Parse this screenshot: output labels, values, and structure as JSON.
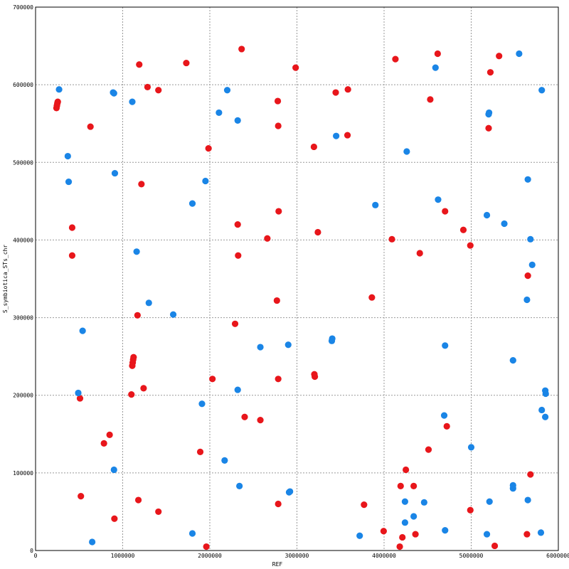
{
  "chart_data": {
    "type": "scatter",
    "title": "",
    "xlabel": "REF",
    "ylabel": "S_symbiotica_STs_chr",
    "xlim": [
      0,
      6000000
    ],
    "ylim": [
      0,
      700000
    ],
    "x_ticks": [
      0,
      1000000,
      2000000,
      3000000,
      4000000,
      5000000,
      6000000
    ],
    "x_tick_labels": [
      "0",
      "1000000",
      "2000000",
      "3000000",
      "4000000",
      "5000000",
      "6000000"
    ],
    "y_ticks": [
      0,
      100000,
      200000,
      300000,
      400000,
      500000,
      600000,
      700000
    ],
    "y_tick_labels": [
      "0",
      "100000",
      "200000",
      "300000",
      "400000",
      "500000",
      "600000",
      "700000"
    ],
    "grid": true,
    "legend": "none",
    "series": [
      {
        "color": "#e8161b",
        "points": [
          [
            240000,
            570000
          ],
          [
            245000,
            573000
          ],
          [
            250000,
            576000
          ],
          [
            255000,
            578000
          ],
          [
            630000,
            546000
          ],
          [
            420000,
            416000
          ],
          [
            420000,
            380000
          ],
          [
            510000,
            196000
          ],
          [
            520000,
            70000
          ],
          [
            785000,
            138000
          ],
          [
            850000,
            149000
          ],
          [
            905000,
            41000
          ],
          [
            1100000,
            201000
          ],
          [
            1110000,
            238000
          ],
          [
            1115000,
            242000
          ],
          [
            1120000,
            246000
          ],
          [
            1125000,
            249000
          ],
          [
            1170000,
            303000
          ],
          [
            1180000,
            65000
          ],
          [
            1190000,
            626000
          ],
          [
            1215000,
            472000
          ],
          [
            1240000,
            209000
          ],
          [
            1285000,
            597000
          ],
          [
            1410000,
            593000
          ],
          [
            1410000,
            50000
          ],
          [
            1730000,
            628000
          ],
          [
            1890000,
            127000
          ],
          [
            1960000,
            5000
          ],
          [
            1985000,
            518000
          ],
          [
            2030000,
            221000
          ],
          [
            2290000,
            292000
          ],
          [
            2320000,
            420000
          ],
          [
            2325000,
            380000
          ],
          [
            2365000,
            646000
          ],
          [
            2400000,
            172000
          ],
          [
            2580000,
            168000
          ],
          [
            2660000,
            402000
          ],
          [
            2770000,
            322000
          ],
          [
            2780000,
            579000
          ],
          [
            2785000,
            547000
          ],
          [
            2785000,
            221000
          ],
          [
            2790000,
            437000
          ],
          [
            2785000,
            60000
          ],
          [
            2985000,
            622000
          ],
          [
            3195000,
            520000
          ],
          [
            3200000,
            227000
          ],
          [
            3205000,
            224000
          ],
          [
            3240000,
            410000
          ],
          [
            3445000,
            590000
          ],
          [
            3585000,
            594000
          ],
          [
            3580000,
            535000
          ],
          [
            3860000,
            326000
          ],
          [
            3770000,
            59000
          ],
          [
            3995000,
            25000
          ],
          [
            4090000,
            401000
          ],
          [
            4130000,
            633000
          ],
          [
            4190000,
            83000
          ],
          [
            4180000,
            5000
          ],
          [
            4210000,
            17000
          ],
          [
            4250000,
            104000
          ],
          [
            4340000,
            83000
          ],
          [
            4360000,
            21000
          ],
          [
            4410000,
            383000
          ],
          [
            4530000,
            581000
          ],
          [
            4510000,
            130000
          ],
          [
            4615000,
            640000
          ],
          [
            4700000,
            437000
          ],
          [
            4720000,
            160000
          ],
          [
            4910000,
            413000
          ],
          [
            4990000,
            393000
          ],
          [
            4990000,
            52000
          ],
          [
            5200000,
            544000
          ],
          [
            5220000,
            616000
          ],
          [
            5270000,
            6000
          ],
          [
            5320000,
            637000
          ],
          [
            5640000,
            21000
          ],
          [
            5650000,
            354000
          ],
          [
            5680000,
            98000
          ]
        ]
      },
      {
        "color": "#1a85e6",
        "points": [
          [
            270000,
            594000
          ],
          [
            370000,
            508000
          ],
          [
            380000,
            475000
          ],
          [
            490000,
            203000
          ],
          [
            540000,
            283000
          ],
          [
            650000,
            11000
          ],
          [
            890000,
            590000
          ],
          [
            900000,
            589000
          ],
          [
            910000,
            486000
          ],
          [
            900000,
            104000
          ],
          [
            1110000,
            578000
          ],
          [
            1160000,
            385000
          ],
          [
            1300000,
            319000
          ],
          [
            1580000,
            304000
          ],
          [
            1800000,
            447000
          ],
          [
            1800000,
            22000
          ],
          [
            1910000,
            189000
          ],
          [
            1950000,
            476000
          ],
          [
            2170000,
            116000
          ],
          [
            2200000,
            593000
          ],
          [
            2105000,
            564000
          ],
          [
            2320000,
            554000
          ],
          [
            2320000,
            207000
          ],
          [
            2340000,
            83000
          ],
          [
            2580000,
            262000
          ],
          [
            2900000,
            265000
          ],
          [
            2910000,
            75000
          ],
          [
            2920000,
            76000
          ],
          [
            3400000,
            270000
          ],
          [
            3405000,
            273000
          ],
          [
            3450000,
            534000
          ],
          [
            3900000,
            445000
          ],
          [
            3720000,
            19000
          ],
          [
            4260000,
            514000
          ],
          [
            4240000,
            63000
          ],
          [
            4240000,
            36000
          ],
          [
            4340000,
            44000
          ],
          [
            4460000,
            62000
          ],
          [
            4590000,
            622000
          ],
          [
            4620000,
            452000
          ],
          [
            4700000,
            264000
          ],
          [
            4690000,
            174000
          ],
          [
            4700000,
            26000
          ],
          [
            5000000,
            133000
          ],
          [
            5180000,
            432000
          ],
          [
            5200000,
            562000
          ],
          [
            5205000,
            564000
          ],
          [
            5210000,
            63000
          ],
          [
            5180000,
            21000
          ],
          [
            5380000,
            421000
          ],
          [
            5480000,
            245000
          ],
          [
            5480000,
            84000
          ],
          [
            5480000,
            80000
          ],
          [
            5550000,
            640000
          ],
          [
            5650000,
            478000
          ],
          [
            5640000,
            323000
          ],
          [
            5650000,
            65000
          ],
          [
            5680000,
            401000
          ],
          [
            5700000,
            368000
          ],
          [
            5810000,
            181000
          ],
          [
            5800000,
            23000
          ],
          [
            5810000,
            593000
          ],
          [
            5850000,
            172000
          ],
          [
            5850000,
            206000
          ],
          [
            5855000,
            202000
          ]
        ]
      }
    ]
  }
}
